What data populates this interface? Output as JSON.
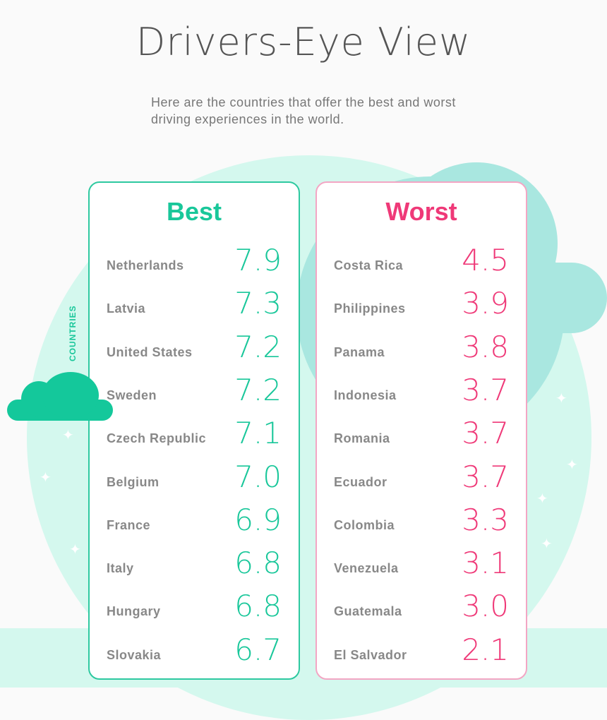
{
  "title": "Drivers-Eye View",
  "subtitle": "Here are the countries that offer the best and worst driving experiences in the world.",
  "side_label": "COUNTRIES",
  "colors": {
    "best": "#19c79a",
    "worst": "#ef3978"
  },
  "best": {
    "heading": "Best",
    "rows": [
      {
        "country": "Netherlands",
        "score": "7.9"
      },
      {
        "country": "Latvia",
        "score": "7.3"
      },
      {
        "country": "United States",
        "score": "7.2"
      },
      {
        "country": "Sweden",
        "score": "7.2"
      },
      {
        "country": "Czech Republic",
        "score": "7.1"
      },
      {
        "country": "Belgium",
        "score": "7.0"
      },
      {
        "country": "France",
        "score": "6.9"
      },
      {
        "country": "Italy",
        "score": "6.8"
      },
      {
        "country": "Hungary",
        "score": "6.8"
      },
      {
        "country": "Slovakia",
        "score": "6.7"
      }
    ]
  },
  "worst": {
    "heading": "Worst",
    "rows": [
      {
        "country": "Costa Rica",
        "score": "4.5"
      },
      {
        "country": "Philippines",
        "score": "3.9"
      },
      {
        "country": "Panama",
        "score": "3.8"
      },
      {
        "country": "Indonesia",
        "score": "3.7"
      },
      {
        "country": "Romania",
        "score": "3.7"
      },
      {
        "country": "Ecuador",
        "score": "3.7"
      },
      {
        "country": "Colombia",
        "score": "3.3"
      },
      {
        "country": "Venezuela",
        "score": "3.1"
      },
      {
        "country": "Guatemala",
        "score": "3.0"
      },
      {
        "country": "El Salvador",
        "score": "2.1"
      }
    ]
  }
}
